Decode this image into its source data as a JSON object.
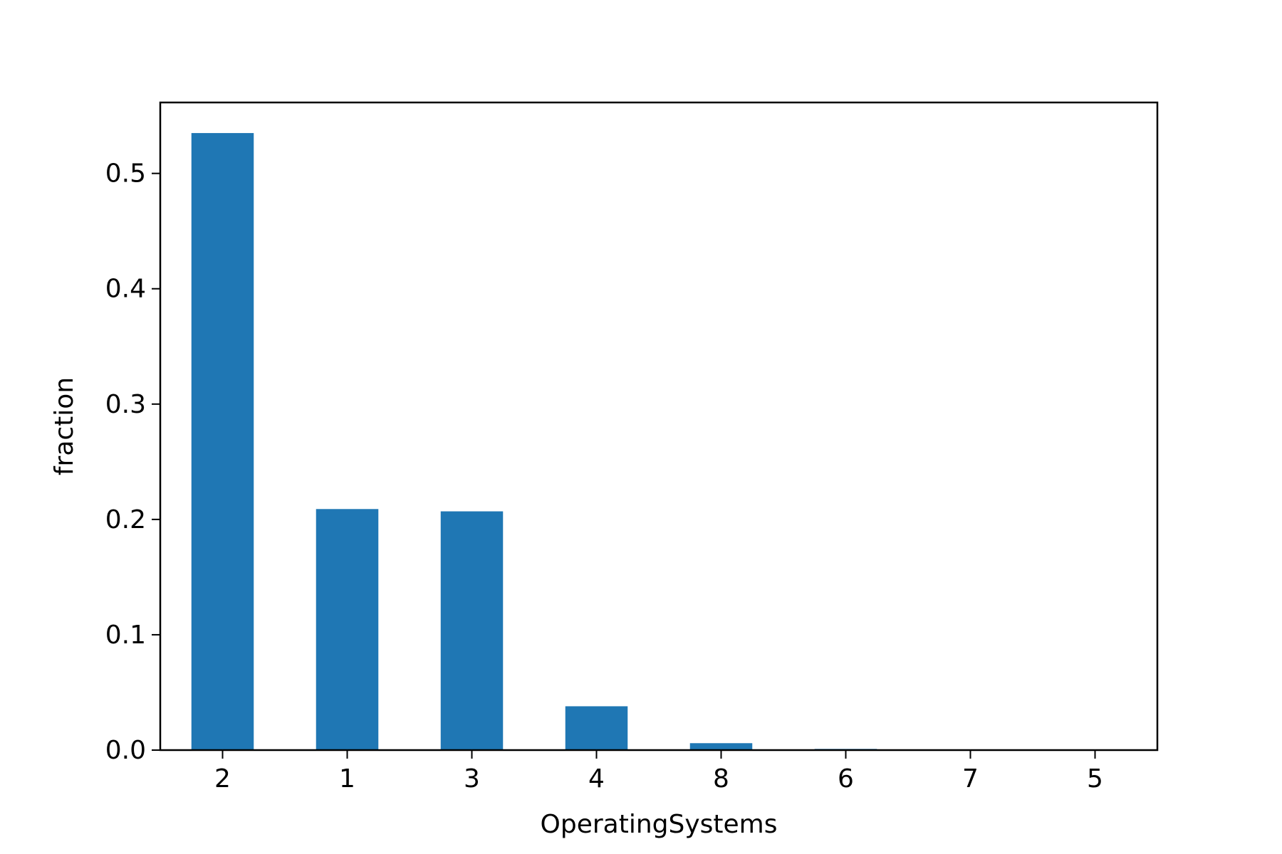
{
  "chart_data": {
    "type": "bar",
    "categories": [
      "2",
      "1",
      "3",
      "4",
      "8",
      "6",
      "7",
      "5"
    ],
    "values": [
      0.535,
      0.209,
      0.207,
      0.038,
      0.006,
      0.001,
      0.0002,
      0.0001
    ],
    "xlabel": "OperatingSystems",
    "ylabel": "fraction",
    "ylim": [
      0,
      0.5615
    ],
    "yticks": [
      "0.0",
      "0.1",
      "0.2",
      "0.3",
      "0.4",
      "0.5"
    ],
    "grid": false,
    "bar_color": "#1f77b4"
  }
}
